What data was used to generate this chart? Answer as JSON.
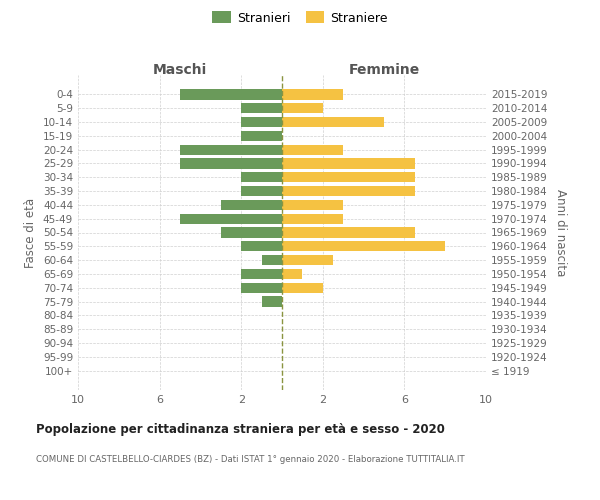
{
  "age_groups": [
    "100+",
    "95-99",
    "90-94",
    "85-89",
    "80-84",
    "75-79",
    "70-74",
    "65-69",
    "60-64",
    "55-59",
    "50-54",
    "45-49",
    "40-44",
    "35-39",
    "30-34",
    "25-29",
    "20-24",
    "15-19",
    "10-14",
    "5-9",
    "0-4"
  ],
  "birth_years": [
    "≤ 1919",
    "1920-1924",
    "1925-1929",
    "1930-1934",
    "1935-1939",
    "1940-1944",
    "1945-1949",
    "1950-1954",
    "1955-1959",
    "1960-1964",
    "1965-1969",
    "1970-1974",
    "1975-1979",
    "1980-1984",
    "1985-1989",
    "1990-1994",
    "1995-1999",
    "2000-2004",
    "2005-2009",
    "2010-2014",
    "2015-2019"
  ],
  "males": [
    0,
    0,
    0,
    0,
    0,
    1,
    2,
    2,
    1,
    2,
    3,
    5,
    3,
    2,
    2,
    5,
    5,
    2,
    2,
    2,
    5
  ],
  "females": [
    0,
    0,
    0,
    0,
    0,
    0,
    2,
    1,
    2.5,
    8,
    6.5,
    3,
    3,
    6.5,
    6.5,
    6.5,
    3,
    0,
    5,
    2,
    3
  ],
  "male_color": "#6a9a5a",
  "female_color": "#f5c242",
  "center_line_color": "#8a9440",
  "background_color": "#ffffff",
  "grid_color": "#d0d0d0",
  "title": "Popolazione per cittadinanza straniera per età e sesso - 2020",
  "subtitle": "COMUNE DI CASTELBELLO-CIARDES (BZ) - Dati ISTAT 1° gennaio 2020 - Elaborazione TUTTITALIA.IT",
  "legend_stranieri": "Stranieri",
  "legend_straniere": "Straniere",
  "header_left": "Maschi",
  "header_right": "Femmine",
  "ylabel_left": "Fasce di età",
  "ylabel_right": "Anni di nascita",
  "xlim": 10,
  "bar_height": 0.75
}
